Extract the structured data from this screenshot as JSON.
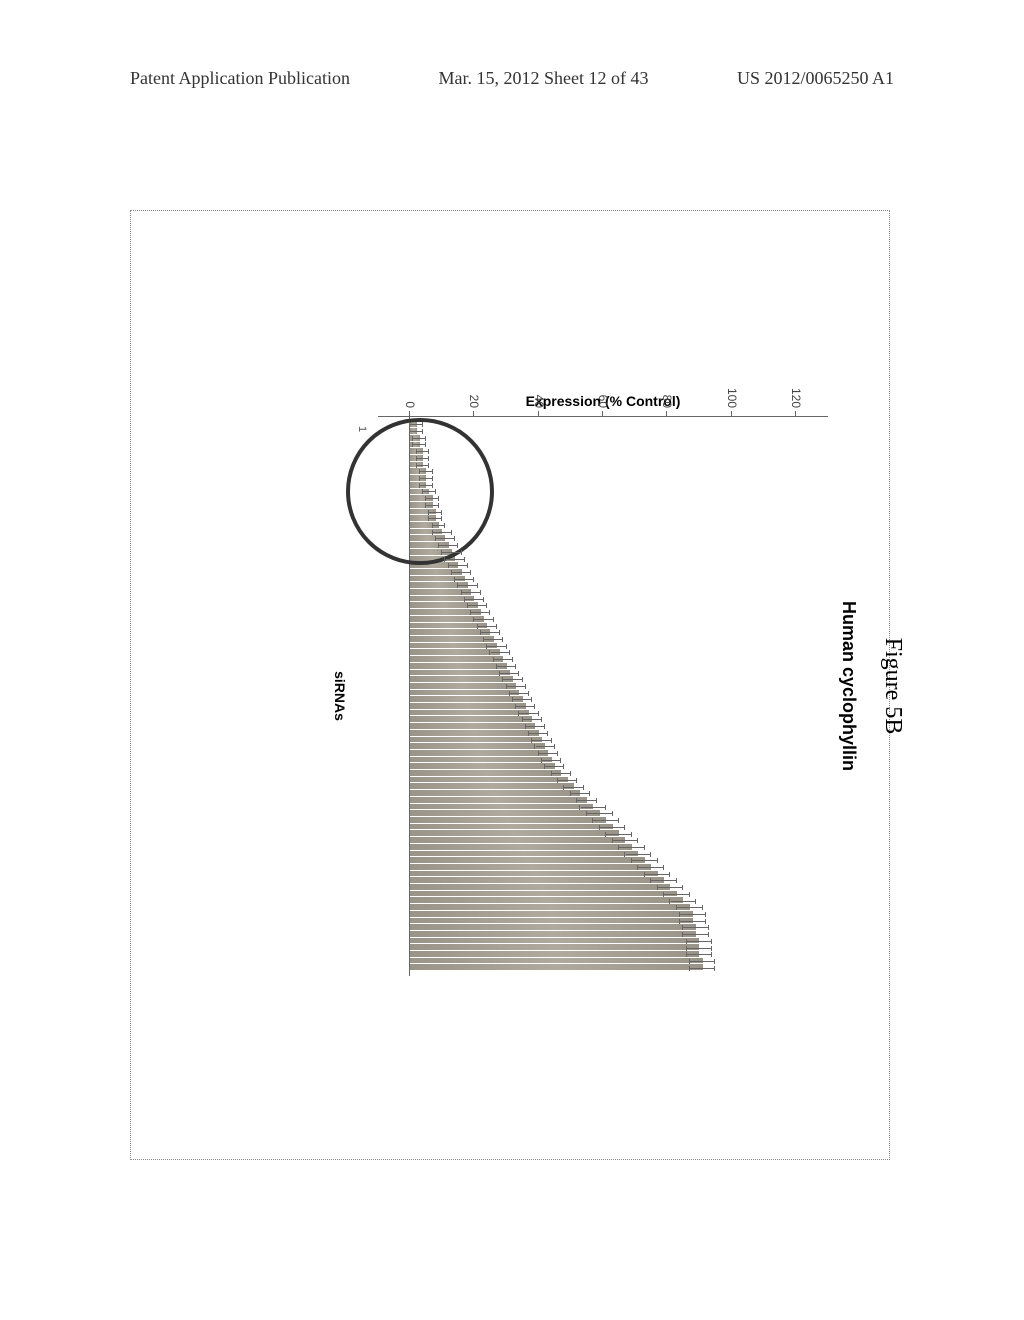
{
  "header": {
    "left": "Patent Application Publication",
    "center": "Mar. 15, 2012  Sheet 12 of 43",
    "right": "US 2012/0065250 A1"
  },
  "figure_label": "Figure 5B",
  "chart": {
    "type": "bar",
    "title": "Human cyclophyllin",
    "ylabel": "Expression (% Control)",
    "xlabel": "siRNAs",
    "ylim": [
      -10,
      130
    ],
    "yticks": [
      0,
      20,
      40,
      60,
      80,
      100,
      120
    ],
    "x_first_tick": "1",
    "bar_color": "#9a9488",
    "background_color": "#ffffff",
    "grid_color": "#dddddd",
    "axis_color": "#666666",
    "values": [
      2,
      2,
      3,
      3,
      4,
      4,
      4,
      5,
      5,
      5,
      6,
      7,
      7,
      8,
      8,
      9,
      10,
      11,
      12,
      13,
      14,
      15,
      16,
      17,
      18,
      19,
      20,
      21,
      22,
      23,
      24,
      25,
      26,
      27,
      28,
      29,
      30,
      31,
      32,
      33,
      34,
      35,
      36,
      37,
      38,
      39,
      40,
      41,
      42,
      43,
      44,
      45,
      47,
      49,
      51,
      53,
      55,
      57,
      59,
      61,
      63,
      65,
      67,
      69,
      71,
      73,
      75,
      77,
      79,
      81,
      83,
      85,
      87,
      88,
      88,
      89,
      89,
      90,
      90,
      90,
      91,
      91
    ],
    "errors": [
      2,
      2,
      2,
      2,
      2,
      2,
      2,
      2,
      2,
      2,
      2,
      2,
      2,
      2,
      2,
      2,
      3,
      3,
      3,
      3,
      3,
      3,
      3,
      3,
      3,
      3,
      3,
      3,
      3,
      3,
      3,
      3,
      3,
      3,
      3,
      3,
      3,
      3,
      3,
      3,
      3,
      3,
      3,
      3,
      3,
      3,
      3,
      3,
      3,
      3,
      3,
      3,
      3,
      3,
      3,
      3,
      3,
      4,
      4,
      4,
      4,
      4,
      4,
      4,
      4,
      4,
      4,
      4,
      4,
      4,
      4,
      4,
      4,
      4,
      4,
      4,
      4,
      4,
      4,
      4,
      4,
      4
    ],
    "highlight": {
      "center_bar_index": 10,
      "radius_bars": 11,
      "stroke": "#333333",
      "stroke_width": 4
    }
  }
}
